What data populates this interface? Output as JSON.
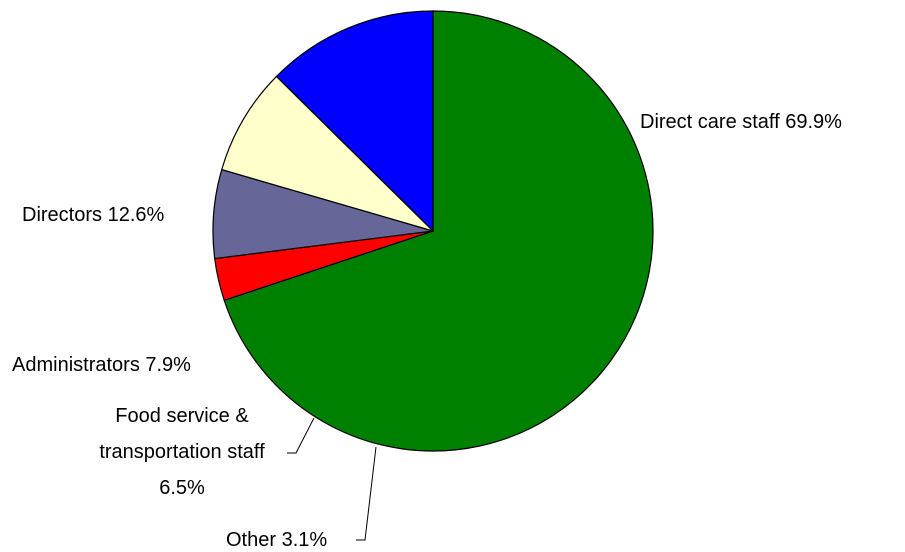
{
  "chart_data": {
    "type": "pie",
    "title": "",
    "start_angle_deg": 0,
    "direction": "clockwise",
    "slices": [
      {
        "name": "Direct care staff",
        "value": 69.9,
        "label": "Direct care staff 69.9%",
        "color": "#008000"
      },
      {
        "name": "Other",
        "value": 3.1,
        "label": "Other 3.1%",
        "color": "#ff0000"
      },
      {
        "name": "Food service & transportation staff",
        "value": 6.5,
        "label_lines": [
          "Food service &",
          "transportation staff",
          "6.5%"
        ],
        "color": "#666699"
      },
      {
        "name": "Administrators",
        "value": 7.9,
        "label": "Administrators 7.9%",
        "color": "#ffffcc"
      },
      {
        "name": "Directors",
        "value": 12.6,
        "label": "Directors 12.6%",
        "color": "#0000ff"
      }
    ]
  }
}
